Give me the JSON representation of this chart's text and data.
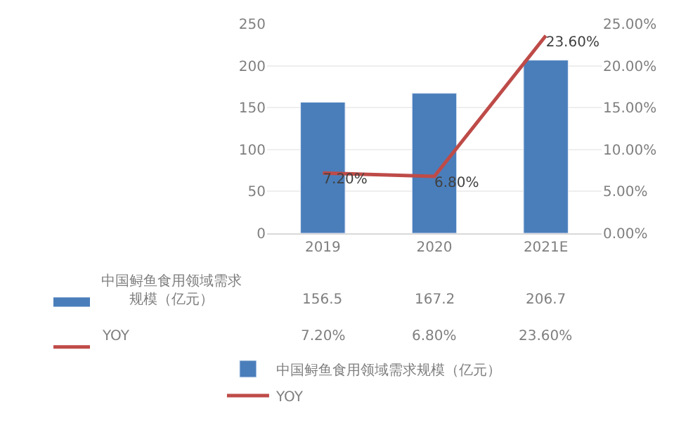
{
  "chart_data": {
    "type": "bar",
    "categories": [
      "2019",
      "2020",
      "2021E"
    ],
    "series": [
      {
        "name": "中国鲟鱼食用领域需求规模（亿元）",
        "color": "#4a7ebb",
        "values": [
          156.5,
          167.2,
          206.7
        ]
      },
      {
        "name": "YOY",
        "type": "line",
        "axis": "y2",
        "color": "#be4b48",
        "values": [
          7.2,
          6.8,
          23.6
        ],
        "value_labels": [
          "7.20%",
          "6.80%",
          "23.60%"
        ]
      }
    ],
    "data_labels": true,
    "ylim": [
      0,
      250
    ],
    "yticks": [
      0,
      50,
      100,
      150,
      200,
      250
    ],
    "y2lim": [
      0,
      25
    ],
    "y2ticks": [
      {
        "value": 0,
        "label": "0.00%"
      },
      {
        "value": 5,
        "label": "5.00%"
      },
      {
        "value": 10,
        "label": "10.00%"
      },
      {
        "value": 15,
        "label": "15.00%"
      },
      {
        "value": 20,
        "label": "20.00%"
      },
      {
        "value": 25,
        "label": "25.00%"
      }
    ],
    "grid": "y",
    "legend": "bottom",
    "marker": "none"
  }
}
